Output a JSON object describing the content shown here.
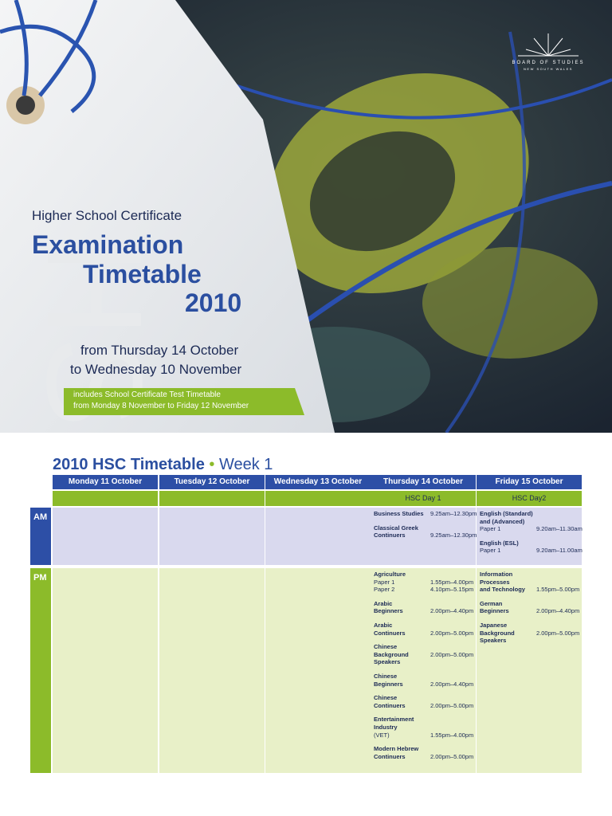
{
  "cover": {
    "watermark": "HSC",
    "logo": [
      "BOARD OF STUDIES",
      "NEW SOUTH WALES"
    ],
    "heading": "Higher School Certificate",
    "title": [
      "Examination",
      "Timetable",
      "2010"
    ],
    "dates": [
      "from Thursday 14 October",
      "to Wednesday 10 November"
    ],
    "banner": [
      "includes School Certificate Test Timetable",
      "from Monday 8 November to Friday 12 November"
    ]
  },
  "timetable": {
    "title": "2010 HSC Timetable",
    "separator": "•",
    "week": "Week 1",
    "columns": [
      "Monday 11 October",
      "Tuesday 12 October",
      "Wednesday 13 October",
      "Thursday 14 October",
      "Friday 15 October"
    ],
    "day_labels": [
      null,
      null,
      null,
      "HSC Day 1",
      "HSC Day2"
    ],
    "sessions": [
      {
        "label": "AM",
        "cells": [
          [],
          [],
          [],
          [
            {
              "title": [
                "Business Studies"
              ],
              "time": "9.25am–12.30pm"
            },
            {
              "title": [
                "Classical Greek",
                "Continuers"
              ],
              "time": "9.25am–12.30pm"
            }
          ],
          [
            {
              "title": [
                "English (Standard)",
                "and (Advanced)"
              ],
              "papers": [
                {
                  "label": "Paper 1",
                  "time": "9.20am–11.30am"
                }
              ]
            },
            {
              "title": [
                "English (ESL)"
              ],
              "papers": [
                {
                  "label": "Paper 1",
                  "time": "9.20am–11.00am"
                }
              ]
            }
          ]
        ]
      },
      {
        "label": "PM",
        "cells": [
          [],
          [],
          [],
          [
            {
              "title": [
                "Agriculture"
              ],
              "papers": [
                {
                  "label": "Paper 1",
                  "time": "1.55pm–4.00pm"
                },
                {
                  "label": "Paper 2",
                  "time": "4.10pm–5.15pm"
                }
              ]
            },
            {
              "title": [
                "Arabic",
                "Beginners"
              ],
              "time": "2.00pm–4.40pm"
            },
            {
              "title": [
                "Arabic",
                "Continuers"
              ],
              "time": "2.00pm–5.00pm"
            },
            {
              "title": [
                "Chinese",
                "Background Speakers"
              ],
              "time": "2.00pm–5.00pm"
            },
            {
              "title": [
                "Chinese",
                "Beginners"
              ],
              "time": "2.00pm–4.40pm"
            },
            {
              "title": [
                "Chinese",
                "Continuers"
              ],
              "time": "2.00pm–5.00pm"
            },
            {
              "title": [
                "Entertainment",
                "Industry"
              ],
              "papers": [
                {
                  "label": "(VET)",
                  "time": "1.55pm–4.00pm"
                }
              ]
            },
            {
              "title": [
                "Modern Hebrew",
                "Continuers"
              ],
              "time": "2.00pm–5.00pm"
            }
          ],
          [
            {
              "title": [
                "Information Processes",
                "and Technology"
              ],
              "time": "1.55pm–5.00pm"
            },
            {
              "title": [
                "German",
                "Beginners"
              ],
              "time": "2.00pm–4.40pm"
            },
            {
              "title": [
                "Japanese",
                "Background Speakers"
              ],
              "time": "2.00pm–5.00pm"
            }
          ]
        ]
      }
    ]
  }
}
